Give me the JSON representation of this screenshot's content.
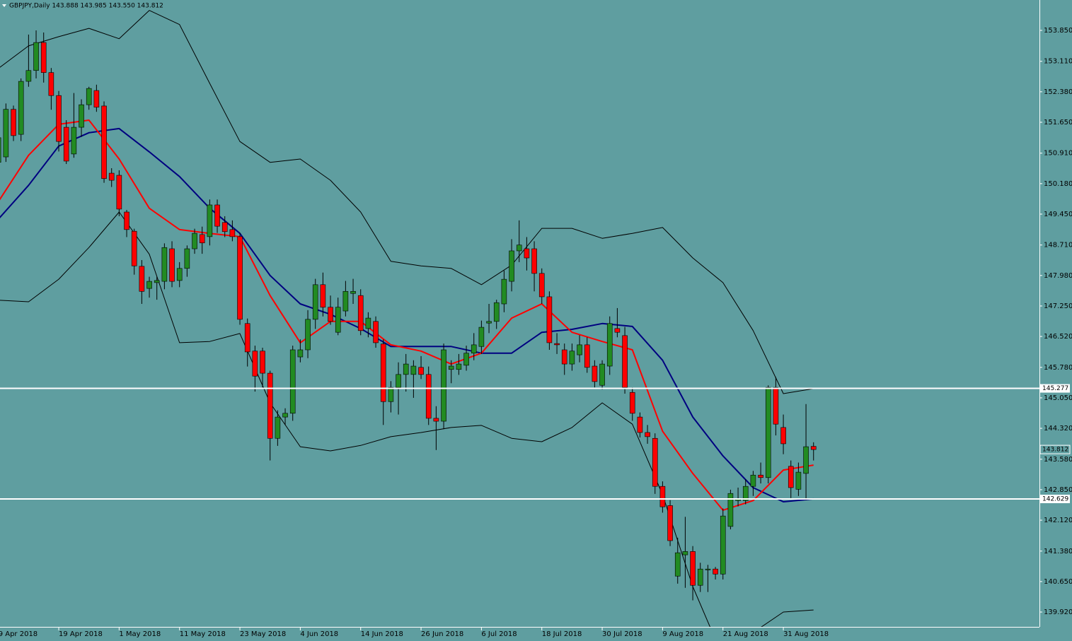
{
  "chart_data": {
    "type": "candlestick",
    "title": "GBPJPY,Daily  143.888 143.985 143.550 143.812",
    "up_color": "#228b22",
    "down_color": "#ff0000",
    "categories": [
      "9 Apr 2018",
      null,
      null,
      null,
      null,
      null,
      null,
      null,
      "19 Apr 2018",
      null,
      null,
      null,
      null,
      null,
      null,
      null,
      "1 May 2018",
      null,
      null,
      null,
      null,
      null,
      null,
      null,
      "11 May 2018",
      null,
      null,
      null,
      null,
      null,
      null,
      null,
      "23 May 2018",
      null,
      null,
      null,
      null,
      null,
      null,
      null,
      "4 Jun 2018",
      null,
      null,
      null,
      null,
      null,
      null,
      null,
      "14 Jun 2018",
      null,
      null,
      null,
      null,
      null,
      null,
      null,
      "26 Jun 2018",
      null,
      null,
      null,
      null,
      null,
      null,
      null,
      "6 Jul 2018",
      null,
      null,
      null,
      null,
      null,
      null,
      null,
      "18 Jul 2018",
      null,
      null,
      null,
      null,
      null,
      null,
      null,
      "30 Jul 2018",
      null,
      null,
      null,
      null,
      null,
      null,
      null,
      "9 Aug 2018",
      null,
      null,
      null,
      null,
      null,
      null,
      null,
      "21 Aug 2018",
      null,
      null,
      null,
      null,
      null,
      null,
      null,
      "31 Aug 2018",
      null,
      null,
      null,
      null
    ],
    "candles": [
      [
        150.69,
        151.4,
        150.6,
        151.28
      ],
      [
        150.82,
        152.1,
        150.7,
        151.96
      ],
      [
        151.96,
        152.05,
        151.2,
        151.33
      ],
      [
        151.36,
        152.7,
        151.2,
        152.63
      ],
      [
        152.63,
        153.75,
        152.5,
        152.89
      ],
      [
        152.89,
        153.85,
        152.7,
        153.56
      ],
      [
        153.56,
        153.8,
        152.6,
        152.84
      ],
      [
        152.84,
        152.95,
        151.95,
        152.29
      ],
      [
        152.29,
        152.4,
        150.95,
        151.19
      ],
      [
        151.53,
        151.7,
        150.65,
        150.72
      ],
      [
        150.89,
        152.35,
        150.8,
        151.53
      ],
      [
        151.53,
        152.2,
        151.3,
        152.07
      ],
      [
        152.07,
        152.5,
        151.95,
        152.46
      ],
      [
        152.41,
        152.55,
        151.9,
        152.01
      ],
      [
        152.04,
        152.15,
        150.2,
        150.3
      ],
      [
        150.43,
        150.55,
        150.1,
        150.26
      ],
      [
        150.38,
        150.5,
        149.4,
        149.57
      ],
      [
        149.5,
        149.55,
        148.9,
        149.08
      ],
      [
        149.04,
        149.1,
        148.0,
        148.21
      ],
      [
        148.2,
        148.35,
        147.3,
        147.6
      ],
      [
        147.67,
        147.95,
        147.45,
        147.84
      ],
      [
        147.81,
        147.95,
        147.4,
        147.86
      ],
      [
        147.84,
        148.75,
        147.65,
        148.65
      ],
      [
        148.62,
        148.8,
        147.7,
        147.84
      ],
      [
        147.86,
        148.3,
        147.7,
        148.15
      ],
      [
        148.15,
        148.7,
        147.95,
        148.62
      ],
      [
        148.62,
        149.1,
        148.5,
        148.99
      ],
      [
        148.96,
        149.15,
        148.5,
        148.76
      ],
      [
        148.91,
        149.8,
        148.7,
        149.67
      ],
      [
        149.67,
        149.8,
        149.0,
        149.16
      ],
      [
        149.25,
        149.4,
        148.9,
        149.03
      ],
      [
        149.08,
        149.3,
        148.8,
        148.91
      ],
      [
        148.91,
        149.0,
        146.8,
        146.93
      ],
      [
        146.83,
        146.95,
        145.8,
        146.15
      ],
      [
        146.17,
        146.3,
        145.2,
        145.57
      ],
      [
        146.17,
        146.25,
        145.3,
        145.64
      ],
      [
        145.64,
        145.7,
        143.55,
        144.08
      ],
      [
        144.08,
        144.75,
        143.9,
        144.59
      ],
      [
        144.59,
        144.8,
        144.4,
        144.68
      ],
      [
        144.68,
        146.3,
        144.5,
        146.2
      ],
      [
        146.03,
        146.45,
        145.9,
        146.2
      ],
      [
        146.2,
        147.15,
        146.0,
        146.93
      ],
      [
        146.93,
        147.9,
        146.7,
        147.76
      ],
      [
        147.76,
        148.05,
        147.0,
        147.22
      ],
      [
        147.22,
        147.5,
        146.8,
        146.88
      ],
      [
        146.62,
        147.45,
        146.55,
        147.22
      ],
      [
        147.13,
        147.85,
        147.0,
        147.6
      ],
      [
        147.55,
        147.9,
        147.3,
        147.6
      ],
      [
        147.5,
        147.65,
        146.55,
        146.66
      ],
      [
        146.71,
        147.1,
        146.5,
        146.96
      ],
      [
        146.88,
        147.0,
        146.25,
        146.37
      ],
      [
        146.34,
        146.45,
        144.4,
        144.96
      ],
      [
        144.96,
        145.45,
        144.7,
        145.3
      ],
      [
        145.3,
        145.9,
        144.65,
        145.61
      ],
      [
        145.61,
        146.1,
        145.2,
        145.86
      ],
      [
        145.61,
        145.95,
        145.05,
        145.81
      ],
      [
        145.78,
        146.05,
        145.5,
        145.61
      ],
      [
        145.61,
        145.8,
        144.4,
        144.56
      ],
      [
        144.56,
        144.85,
        143.8,
        144.49
      ],
      [
        144.49,
        146.35,
        144.3,
        146.2
      ],
      [
        145.73,
        145.95,
        145.4,
        145.81
      ],
      [
        145.73,
        146.1,
        145.6,
        145.86
      ],
      [
        145.83,
        146.3,
        145.7,
        146.12
      ],
      [
        146.12,
        146.6,
        145.95,
        146.32
      ],
      [
        146.28,
        146.9,
        146.1,
        146.74
      ],
      [
        146.84,
        147.3,
        146.6,
        146.88
      ],
      [
        146.88,
        147.4,
        146.7,
        147.33
      ],
      [
        147.3,
        148.1,
        147.1,
        147.89
      ],
      [
        147.84,
        148.85,
        147.6,
        148.57
      ],
      [
        148.57,
        149.3,
        148.3,
        148.71
      ],
      [
        148.62,
        148.9,
        148.1,
        148.4
      ],
      [
        148.62,
        148.8,
        147.6,
        148.03
      ],
      [
        148.03,
        148.15,
        147.3,
        147.47
      ],
      [
        147.47,
        147.6,
        146.2,
        146.37
      ],
      [
        146.35,
        146.6,
        146.1,
        146.32
      ],
      [
        146.2,
        146.35,
        145.6,
        145.86
      ],
      [
        145.86,
        146.35,
        145.7,
        146.17
      ],
      [
        146.08,
        146.55,
        145.9,
        146.32
      ],
      [
        146.32,
        146.5,
        145.65,
        145.78
      ],
      [
        145.81,
        145.95,
        145.3,
        145.44
      ],
      [
        145.35,
        145.95,
        145.25,
        145.86
      ],
      [
        145.81,
        147.0,
        145.6,
        146.83
      ],
      [
        146.71,
        147.2,
        146.5,
        146.62
      ],
      [
        146.54,
        146.75,
        145.15,
        145.3
      ],
      [
        145.18,
        145.3,
        144.5,
        144.68
      ],
      [
        144.59,
        144.7,
        144.1,
        144.22
      ],
      [
        144.22,
        144.4,
        143.95,
        144.12
      ],
      [
        144.08,
        144.2,
        142.75,
        142.93
      ],
      [
        142.93,
        143.05,
        142.3,
        142.44
      ],
      [
        142.47,
        142.6,
        141.5,
        141.63
      ],
      [
        140.78,
        141.7,
        140.6,
        141.34
      ],
      [
        141.29,
        142.2,
        140.5,
        141.37
      ],
      [
        141.37,
        141.5,
        140.2,
        140.56
      ],
      [
        140.56,
        141.1,
        140.4,
        140.95
      ],
      [
        140.93,
        141.05,
        140.4,
        140.95
      ],
      [
        140.95,
        141.0,
        140.7,
        140.83
      ],
      [
        140.83,
        142.4,
        140.7,
        142.22
      ],
      [
        141.97,
        142.85,
        141.9,
        142.76
      ],
      [
        142.59,
        142.9,
        142.45,
        142.64
      ],
      [
        142.59,
        143.1,
        142.5,
        142.93
      ],
      [
        142.93,
        143.3,
        142.7,
        143.2
      ],
      [
        143.2,
        143.5,
        143.0,
        143.14
      ],
      [
        143.14,
        145.35,
        143.0,
        145.3
      ],
      [
        145.3,
        145.55,
        144.15,
        144.42
      ],
      [
        144.34,
        144.65,
        143.7,
        143.95
      ],
      [
        143.41,
        143.55,
        142.65,
        142.9
      ],
      [
        142.86,
        143.5,
        142.7,
        143.27
      ],
      [
        143.24,
        144.9,
        142.6,
        143.88
      ],
      [
        143.888,
        143.985,
        143.55,
        143.812
      ]
    ],
    "lines": [
      {
        "color": "#000000",
        "width": 1,
        "x": [
          0,
          4,
          8,
          12,
          16,
          20,
          24,
          28,
          32,
          36,
          40,
          44,
          48,
          52,
          56,
          60,
          64,
          68,
          72,
          76,
          80,
          84,
          88,
          92,
          96,
          100,
          104,
          108
        ],
        "values": [
          152.94,
          153.48,
          153.7,
          153.9,
          153.65,
          154.33,
          153.99,
          152.58,
          151.19,
          150.69,
          150.77,
          150.26,
          149.5,
          148.32,
          148.21,
          148.15,
          147.76,
          148.23,
          149.11,
          149.11,
          148.87,
          148.99,
          149.13,
          148.4,
          147.81,
          146.66,
          145.15,
          145.27
        ]
      },
      {
        "color": "#000000",
        "width": 1,
        "x": [
          0,
          4,
          8,
          12,
          16,
          20,
          24,
          28,
          32,
          36,
          40,
          44,
          48,
          52,
          56,
          60,
          64,
          68,
          72,
          76,
          80,
          84,
          88,
          92,
          96,
          100,
          104,
          108
        ],
        "values": [
          147.39,
          147.35,
          147.89,
          148.65,
          149.5,
          148.49,
          146.37,
          146.4,
          146.59,
          144.93,
          143.88,
          143.78,
          143.91,
          144.12,
          144.22,
          144.34,
          144.39,
          144.08,
          144.0,
          144.34,
          144.93,
          144.42,
          142.73,
          140.53,
          138.84,
          139.43,
          139.92,
          139.97
        ]
      },
      {
        "color": "#000080",
        "width": 2,
        "x": [
          0,
          4,
          8,
          12,
          16,
          20,
          24,
          28,
          32,
          36,
          40,
          44,
          48,
          52,
          56,
          60,
          64,
          68,
          72,
          76,
          80,
          84,
          88,
          92,
          96,
          100,
          104,
          108
        ],
        "values": [
          149.33,
          150.14,
          151.08,
          151.4,
          151.5,
          150.94,
          150.35,
          149.59,
          148.99,
          147.98,
          147.3,
          147.05,
          146.71,
          146.28,
          146.28,
          146.28,
          146.12,
          146.12,
          146.62,
          146.69,
          146.83,
          146.76,
          145.95,
          144.59,
          143.66,
          142.9,
          142.56,
          142.63
        ]
      },
      {
        "color": "#ff0000",
        "width": 2,
        "x": [
          0,
          4,
          8,
          12,
          16,
          20,
          24,
          28,
          32,
          36,
          40,
          44,
          48,
          52,
          56,
          60,
          64,
          68,
          72,
          76,
          80,
          84,
          88,
          92,
          96,
          100,
          104,
          108
        ],
        "values": [
          149.75,
          150.86,
          151.6,
          151.7,
          150.77,
          149.59,
          149.08,
          148.99,
          148.91,
          147.5,
          146.37,
          146.88,
          146.88,
          146.32,
          146.17,
          145.86,
          146.12,
          146.96,
          147.3,
          146.62,
          146.4,
          146.2,
          144.25,
          143.24,
          142.36,
          142.59,
          143.32,
          143.44
        ]
      }
    ],
    "levels": [
      145.277,
      142.629
    ],
    "level_color": "#ffffff",
    "ylim": [
      139.565,
      154.578
    ],
    "yticks": [
      {
        "value": 153.85,
        "label": "153.850"
      },
      {
        "value": 153.11,
        "label": "153.110"
      },
      {
        "value": 152.38,
        "label": "152.380"
      },
      {
        "value": 151.65,
        "label": "151.650"
      },
      {
        "value": 150.91,
        "label": "150.910"
      },
      {
        "value": 150.18,
        "label": "150.180"
      },
      {
        "value": 149.45,
        "label": "149.450"
      },
      {
        "value": 148.71,
        "label": "148.710"
      },
      {
        "value": 147.98,
        "label": "147.980"
      },
      {
        "value": 147.25,
        "label": "147.250"
      },
      {
        "value": 146.52,
        "label": "146.520"
      },
      {
        "value": 145.78,
        "label": "145.780"
      },
      {
        "value": 145.05,
        "label": "145.050"
      },
      {
        "value": 144.32,
        "label": "144.320"
      },
      {
        "value": 143.58,
        "label": "143.580"
      },
      {
        "value": 142.85,
        "label": "142.850"
      },
      {
        "value": 142.12,
        "label": "142.120"
      },
      {
        "value": 141.38,
        "label": "141.380"
      },
      {
        "value": 140.65,
        "label": "140.650"
      },
      {
        "value": 139.92,
        "label": "139.920"
      }
    ]
  }
}
